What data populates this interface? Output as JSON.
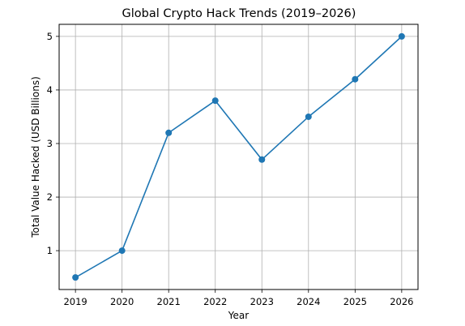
{
  "chart_data": {
    "type": "line",
    "title": "Global Crypto Hack Trends (2019–2026)",
    "xlabel": "Year",
    "ylabel": "Total Value Hacked (USD Billions)",
    "x": [
      "2019",
      "2020",
      "2021",
      "2022",
      "2023",
      "2024",
      "2025",
      "2026"
    ],
    "series": [
      {
        "values": [
          0.5,
          1.0,
          3.2,
          3.8,
          2.7,
          3.5,
          4.2,
          5.0
        ]
      }
    ],
    "xlim": [
      2018.65,
      2026.35
    ],
    "ylim": [
      0.275,
      5.225
    ],
    "yticks": [
      1,
      2,
      3,
      4,
      5
    ],
    "grid": true,
    "legend": "none",
    "colors": {
      "line": "#1f77b4",
      "grid": "#b0b0b0",
      "axis": "#000000"
    },
    "markers": "circle"
  }
}
